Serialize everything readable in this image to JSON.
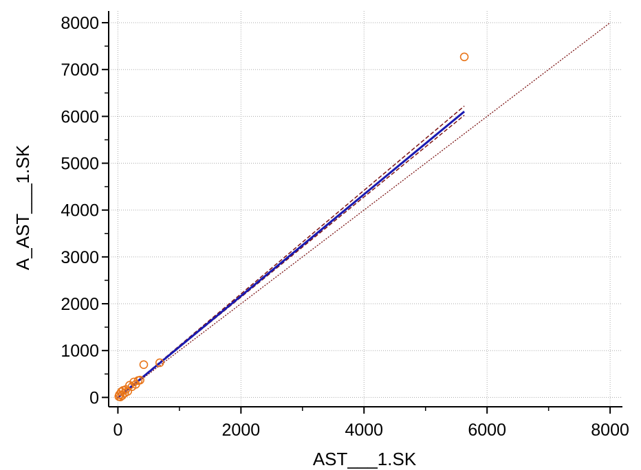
{
  "chart_data": {
    "type": "scatter",
    "title": "",
    "xlabel": "AST___1.SK",
    "ylabel": "A_AST___1.SK",
    "xlim": [
      -150,
      8200
    ],
    "ylim": [
      -200,
      8250
    ],
    "x_ticks": [
      0,
      2000,
      4000,
      6000,
      8000
    ],
    "y_ticks": [
      0,
      1000,
      2000,
      3000,
      4000,
      5000,
      6000,
      7000,
      8000
    ],
    "x_minor_step": 1000,
    "y_minor_step": 500,
    "grid": true,
    "points": [
      {
        "x": 15,
        "y": 20
      },
      {
        "x": 25,
        "y": 60
      },
      {
        "x": 40,
        "y": 10
      },
      {
        "x": 55,
        "y": 120
      },
      {
        "x": 70,
        "y": 40
      },
      {
        "x": 85,
        "y": 150
      },
      {
        "x": 110,
        "y": 90
      },
      {
        "x": 130,
        "y": 170
      },
      {
        "x": 160,
        "y": 130
      },
      {
        "x": 190,
        "y": 260
      },
      {
        "x": 230,
        "y": 230
      },
      {
        "x": 260,
        "y": 330
      },
      {
        "x": 290,
        "y": 280
      },
      {
        "x": 330,
        "y": 360
      },
      {
        "x": 360,
        "y": 370
      },
      {
        "x": 420,
        "y": 700
      },
      {
        "x": 680,
        "y": 740
      },
      {
        "x": 5630,
        "y": 7270
      }
    ],
    "regression": {
      "x0": 0,
      "x1": 5630,
      "slope": 1.085,
      "intercept": -5
    },
    "ci_upper": {
      "x0": 0,
      "x1": 5630,
      "slope": 1.105,
      "intercept": 0
    },
    "ci_lower": {
      "x0": 0,
      "x1": 5630,
      "slope": 1.07,
      "intercept": 0
    },
    "identity_line": {
      "x0": 0,
      "x1": 8000
    },
    "colors": {
      "points": "#E8751A",
      "regression": "#1A1AB0",
      "ci": "#7A1010",
      "identity": "#7A1010",
      "grid": "#AAAAAA",
      "axis": "#000000"
    }
  }
}
